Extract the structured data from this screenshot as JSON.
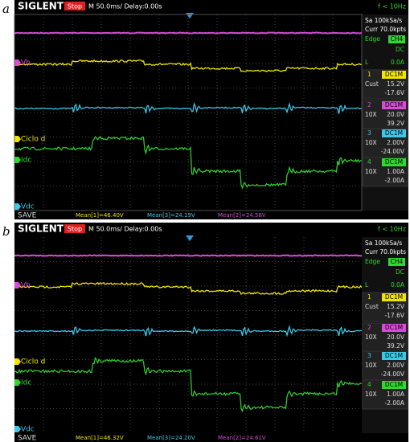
{
  "panels": [
    {
      "label": "a",
      "brand": "SIGLENT",
      "status": "Stop",
      "timebase": "M 50.0ms/ Delay:0.00s",
      "trigger_freq": "f < 10Hz",
      "sample_rate": "Sa 100kSa/s",
      "memory": "Curr 70.0kpts",
      "trigger": {
        "type": "Edge",
        "source": "CH4",
        "coupling": "DC",
        "level_label": "L",
        "level": "0.0A"
      },
      "channels": [
        {
          "num": "1",
          "coupling": "DC1M",
          "probe": "Cust",
          "scale": "15.2V",
          "offset": "-17.6V"
        },
        {
          "num": "2",
          "coupling": "DC1M",
          "probe": "10X",
          "scale": "20.0V",
          "offset": "39.2V"
        },
        {
          "num": "3",
          "coupling": "DC1M",
          "probe": "10X",
          "scale": "2.00V",
          "offset": "-24.00V"
        },
        {
          "num": "4",
          "coupling": "DC1M",
          "probe": "10X",
          "scale": "1.00A",
          "offset": "-2.00A"
        }
      ],
      "markers": [
        "Vb",
        "Ciclo d",
        "Idc",
        "Vdc"
      ],
      "save": "SAVE",
      "means": [
        "Mean[1]=46.40V",
        "Mean[3]=24.19V",
        "Mean[2]=24.58V"
      ]
    },
    {
      "label": "b",
      "brand": "SIGLENT",
      "status": "Stop",
      "timebase": "M 50.0ms/ Delay:0.00s",
      "trigger_freq": "f < 10Hz",
      "sample_rate": "Sa 100kSa/s",
      "memory": "Curr 70.0kpts",
      "trigger": {
        "type": "Edge",
        "source": "CH4",
        "coupling": "DC",
        "level_label": "L",
        "level": "0.0A"
      },
      "channels": [
        {
          "num": "1",
          "coupling": "DC1M",
          "probe": "Cust",
          "scale": "15.2V",
          "offset": "-17.6V"
        },
        {
          "num": "2",
          "coupling": "DC1M",
          "probe": "10X",
          "scale": "20.0V",
          "offset": "39.2V"
        },
        {
          "num": "3",
          "coupling": "DC1M",
          "probe": "10X",
          "scale": "2.00V",
          "offset": "-24.00V"
        },
        {
          "num": "4",
          "coupling": "DC1M",
          "probe": "10X",
          "scale": "1.00A",
          "offset": "-2.00A"
        }
      ],
      "markers": [
        "Vb",
        "Ciclo d",
        "Idc",
        "Vdc"
      ],
      "save": "SAVE",
      "means": [
        "Mean[1]=46.32V",
        "Mean[3]=24.20V",
        "Mean[2]=24.61V"
      ]
    }
  ]
}
